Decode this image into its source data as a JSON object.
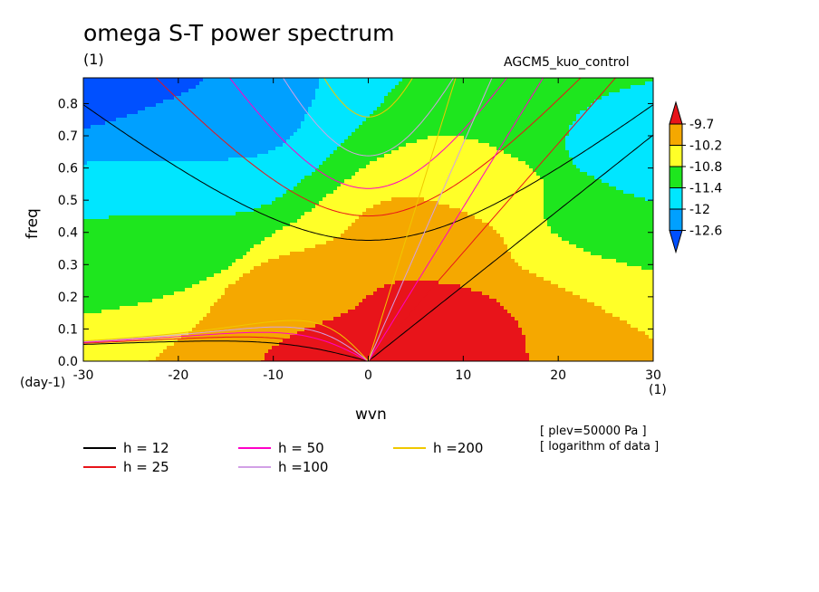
{
  "header": {
    "title": "omega S-T power spectrum",
    "subtitle": "(1)",
    "run_name": "AGCM5_kuo_control"
  },
  "notes": [
    "[ plev=50000 Pa ]",
    "[ logarithm of data ]"
  ],
  "chart_data": {
    "type": "heatmap",
    "xlabel": "wvn",
    "ylabel": "freq",
    "x_unit_label": "(1)",
    "y_unit_label": "(day-1)",
    "xlim": [
      -30,
      30
    ],
    "ylim": [
      0,
      0.88
    ],
    "xticks": [
      "-30",
      "-20",
      "-10",
      "0",
      "10",
      "20",
      "30"
    ],
    "yticks": [
      "0.0",
      "0.1",
      "0.2",
      "0.3",
      "0.4",
      "0.5",
      "0.6",
      "0.7",
      "0.8"
    ],
    "colorbar": {
      "levels": [
        "-9.7",
        "-10.2",
        "-10.8",
        "-11.4",
        "-12",
        "-12.6"
      ],
      "colors": [
        "#e8141a",
        "#f5a800",
        "#ffff28",
        "#1ee61e",
        "#00e6ff",
        "#00a0ff",
        "#0050ff"
      ]
    },
    "field_samples": [
      {
        "wvn": 0,
        "freq": 0.05,
        "value": -9.5
      },
      {
        "wvn": 5,
        "freq": 0.15,
        "value": -9.6
      },
      {
        "wvn": -8,
        "freq": 0.22,
        "value": -10.0
      },
      {
        "wvn": 8,
        "freq": 0.4,
        "value": -10.0
      },
      {
        "wvn": 15,
        "freq": 0.5,
        "value": -10.5
      },
      {
        "wvn": 22,
        "freq": 0.5,
        "value": -11.1
      },
      {
        "wvn": 28,
        "freq": 0.6,
        "value": -11.7
      },
      {
        "wvn": -20,
        "freq": 0.35,
        "value": -11.1
      },
      {
        "wvn": -20,
        "freq": 0.55,
        "value": -11.7
      },
      {
        "wvn": -20,
        "freq": 0.7,
        "value": -12.3
      },
      {
        "wvn": -28,
        "freq": 0.85,
        "value": -12.9
      }
    ],
    "series": [
      {
        "name": "h = 12",
        "color": "#000000",
        "h": 12
      },
      {
        "name": "h = 25",
        "color": "#e8141a",
        "h": 25
      },
      {
        "name": "h = 50",
        "color": "#ff00c8",
        "h": 50
      },
      {
        "name": "h =100",
        "color": "#d2a0e6",
        "h": 100
      },
      {
        "name": "h =200",
        "color": "#f0c800",
        "h": 200
      }
    ]
  }
}
